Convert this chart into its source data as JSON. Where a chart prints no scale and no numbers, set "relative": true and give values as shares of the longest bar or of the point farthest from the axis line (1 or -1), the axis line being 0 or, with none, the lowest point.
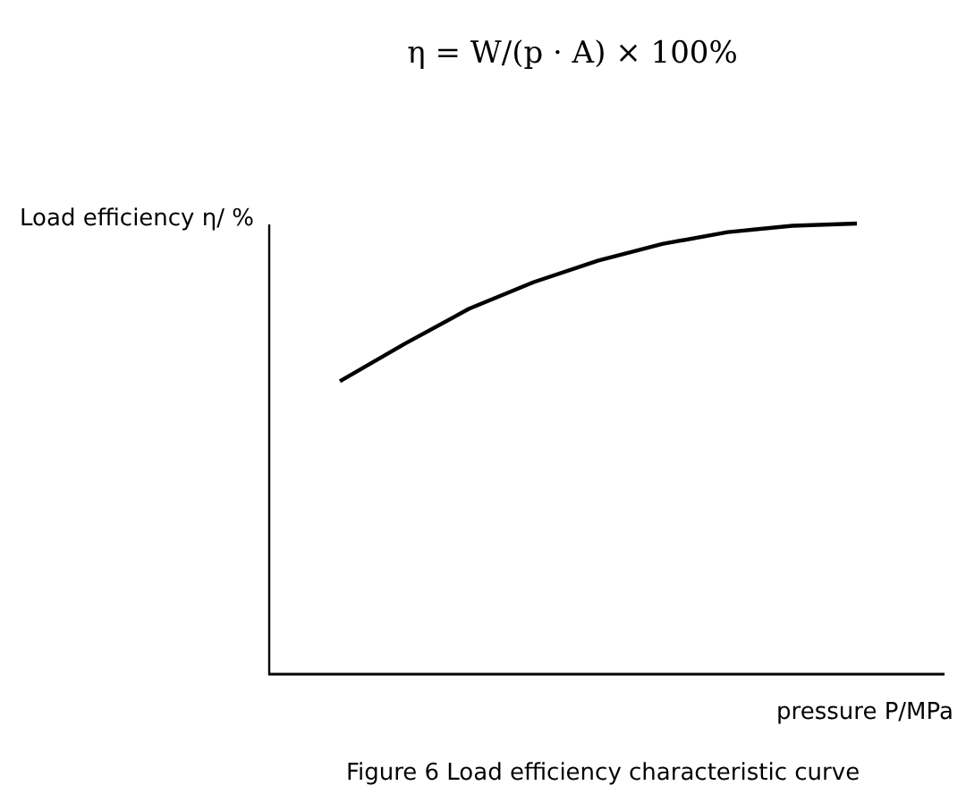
{
  "chart_data": {
    "type": "line",
    "relative": true,
    "xlabel": "pressure P/MPa",
    "ylabel": "Load efficiency η/ %",
    "annotations": [
      "η = W/(p · A) × 100%",
      "Figure 6 Load efficiency characteristic curve"
    ],
    "categories": [
      null,
      null,
      null,
      null,
      null,
      null,
      null,
      null,
      null
    ],
    "series": [
      {
        "color": "#000000",
        "values": [
          0.65,
          0.733,
          0.811,
          0.87,
          0.918,
          0.955,
          0.981,
          0.995,
          1.0
        ]
      }
    ]
  }
}
